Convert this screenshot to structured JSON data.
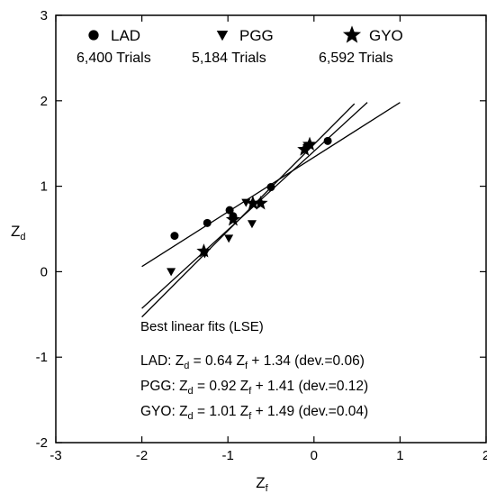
{
  "chart_data": {
    "type": "scatter",
    "title": "",
    "xlabel": "Z",
    "xlabel_sub": "f",
    "ylabel": "Z",
    "ylabel_sub": "d",
    "xlim": [
      -3,
      2
    ],
    "ylim": [
      -2,
      3
    ],
    "xticks": [
      -3,
      -2,
      -1,
      0,
      1,
      2
    ],
    "yticks": [
      -2,
      -1,
      0,
      1,
      2,
      3
    ],
    "grid": false,
    "legend_position": "top",
    "series": [
      {
        "name": "LAD",
        "trials": "6,400 Trials",
        "marker": "circle",
        "x": [
          -1.62,
          -1.24,
          -0.98,
          -0.94,
          -0.5,
          0.16
        ],
        "y": [
          0.42,
          0.57,
          0.72,
          0.65,
          0.99,
          1.53
        ],
        "fit": {
          "slope": 0.64,
          "intercept": 1.34,
          "x_range": [
            -2.0,
            1.0
          ]
        }
      },
      {
        "name": "PGG",
        "trials": "5,184 Trials",
        "marker": "triangle-down",
        "x": [
          -1.66,
          -1.27,
          -0.99,
          -0.79,
          -0.72,
          -0.08
        ],
        "y": [
          0.0,
          0.21,
          0.39,
          0.81,
          0.56,
          1.45
        ],
        "fit": {
          "slope": 0.92,
          "intercept": 1.41,
          "x_range": [
            -2.0,
            0.62
          ]
        }
      },
      {
        "name": "GYO",
        "trials": "6,592 Trials",
        "marker": "star",
        "x": [
          -1.28,
          -0.94,
          -0.71,
          -0.62,
          -0.11,
          -0.05
        ],
        "y": [
          0.24,
          0.61,
          0.8,
          0.8,
          1.43,
          1.49
        ],
        "fit": {
          "slope": 1.01,
          "intercept": 1.49,
          "x_range": [
            -2.0,
            0.47
          ]
        }
      }
    ],
    "annotations": {
      "heading": "Best linear fits (LSE)",
      "equations": [
        {
          "label": "LAD:",
          "slope": "0.64",
          "intercept": "1.34",
          "dev": "(dev.=0.06)"
        },
        {
          "label": "PGG:",
          "slope": "0.92",
          "intercept": "1.41",
          "dev": "(dev.=0.12)"
        },
        {
          "label": "GYO:",
          "slope": "1.01",
          "intercept": "1.49",
          "dev": "(dev.=0.04)"
        }
      ]
    }
  }
}
